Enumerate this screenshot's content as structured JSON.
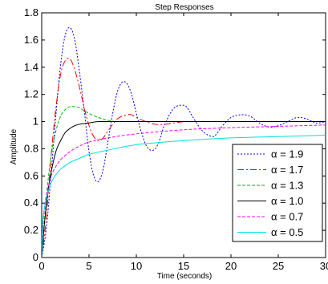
{
  "chart_data": {
    "type": "line",
    "title": "Step Responses",
    "xlabel": "Time (seconds)",
    "ylabel": "Amplitude",
    "xlim": [
      0,
      30
    ],
    "ylim": [
      0,
      1.8
    ],
    "xticks": [
      0,
      5,
      10,
      15,
      20,
      25,
      30
    ],
    "xtick_labels": [
      "0",
      "5",
      "10",
      "15",
      "20",
      "25",
      "30"
    ],
    "yticks": [
      0,
      0.2,
      0.4,
      0.6,
      0.8,
      1,
      1.2,
      1.4,
      1.6,
      1.8
    ],
    "ytick_labels": [
      "0",
      "0.2",
      "0.4",
      "0.6",
      "0.8",
      "1",
      "1.2",
      "1.4",
      "1.6",
      "1.8"
    ],
    "grid": false,
    "legend_position": "lower-right",
    "series": [
      {
        "name": "α = 1.9",
        "color": "#0000ff",
        "dash": "2,2",
        "x": [
          0,
          0.5,
          1,
          1.5,
          2,
          2.5,
          3,
          3.5,
          4,
          4.5,
          5,
          5.5,
          6,
          6.5,
          7,
          7.5,
          8,
          8.5,
          9,
          9.5,
          10,
          10.5,
          11,
          11.5,
          12,
          12.5,
          13,
          14,
          15,
          15.5,
          16,
          17,
          18,
          18.5,
          19,
          20,
          21,
          22,
          23,
          24,
          25,
          26,
          27,
          28,
          29,
          30
        ],
        "y": [
          0,
          0.22,
          0.62,
          1.05,
          1.42,
          1.64,
          1.69,
          1.6,
          1.36,
          1.08,
          0.78,
          0.6,
          0.56,
          0.65,
          0.85,
          1.06,
          1.22,
          1.29,
          1.28,
          1.2,
          1.06,
          0.93,
          0.83,
          0.79,
          0.8,
          0.87,
          0.98,
          1.1,
          1.12,
          1.09,
          1.03,
          0.93,
          0.89,
          0.91,
          0.96,
          1.03,
          1.05,
          1.04,
          0.99,
          0.96,
          0.97,
          1.0,
          1.03,
          1.02,
          0.99,
          1.0
        ]
      },
      {
        "name": "α = 1.7",
        "color": "#ff0000",
        "dash": "8,3,2,3",
        "x": [
          0,
          0.5,
          1,
          1.5,
          2,
          2.5,
          3,
          3.5,
          4,
          4.5,
          5,
          5.5,
          6,
          6.5,
          7,
          8,
          9,
          9.5,
          10,
          11,
          12,
          13,
          14,
          15,
          16,
          18,
          20,
          22,
          24,
          26,
          28,
          30
        ],
        "y": [
          0,
          0.3,
          0.75,
          1.1,
          1.35,
          1.45,
          1.46,
          1.38,
          1.25,
          1.1,
          0.97,
          0.89,
          0.86,
          0.88,
          0.93,
          1.02,
          1.05,
          1.05,
          1.03,
          1.0,
          0.98,
          0.98,
          0.99,
          1.0,
          1.0,
          1.0,
          1.0,
          1.0,
          1.0,
          1.0,
          1.0,
          1.0
        ]
      },
      {
        "name": "α = 1.3",
        "color": "#00bb00",
        "dash": "4,2",
        "x": [
          0,
          0.5,
          1,
          1.5,
          2,
          2.5,
          3,
          3.5,
          4,
          5,
          6,
          7,
          8,
          10,
          12,
          15,
          20,
          25,
          30
        ],
        "y": [
          0,
          0.45,
          0.75,
          0.93,
          1.04,
          1.09,
          1.11,
          1.11,
          1.1,
          1.06,
          1.03,
          1.01,
          1.0,
          1.0,
          1.0,
          1.0,
          1.0,
          1.0,
          1.0
        ]
      },
      {
        "name": "α = 1.0",
        "color": "#000000",
        "dash": "",
        "x": [
          0,
          0.25,
          0.5,
          0.75,
          1,
          1.5,
          2,
          2.5,
          3,
          3.5,
          4,
          5,
          6,
          8,
          10,
          15,
          20,
          25,
          30
        ],
        "y": [
          0,
          0.22,
          0.39,
          0.53,
          0.63,
          0.78,
          0.86,
          0.92,
          0.95,
          0.97,
          0.98,
          0.99,
          1.0,
          1.0,
          1.0,
          1.0,
          1.0,
          1.0,
          1.0
        ]
      },
      {
        "name": "α = 0.7",
        "color": "#ff00ff",
        "dash": "4,2",
        "x": [
          0,
          0.1,
          0.3,
          0.5,
          1,
          1.5,
          2,
          3,
          4,
          5,
          7,
          10,
          15,
          20,
          25,
          30
        ],
        "y": [
          0,
          0.2,
          0.37,
          0.46,
          0.6,
          0.67,
          0.72,
          0.78,
          0.82,
          0.85,
          0.88,
          0.91,
          0.94,
          0.955,
          0.965,
          0.975
        ]
      },
      {
        "name": "α = 0.5",
        "color": "#00e0e0",
        "dash": "",
        "x": [
          0,
          0.1,
          0.3,
          0.5,
          1,
          1.5,
          2,
          3,
          4,
          5,
          7,
          10,
          15,
          20,
          25,
          30
        ],
        "y": [
          0,
          0.25,
          0.37,
          0.44,
          0.55,
          0.61,
          0.65,
          0.7,
          0.73,
          0.76,
          0.79,
          0.83,
          0.86,
          0.88,
          0.89,
          0.9
        ]
      }
    ]
  }
}
